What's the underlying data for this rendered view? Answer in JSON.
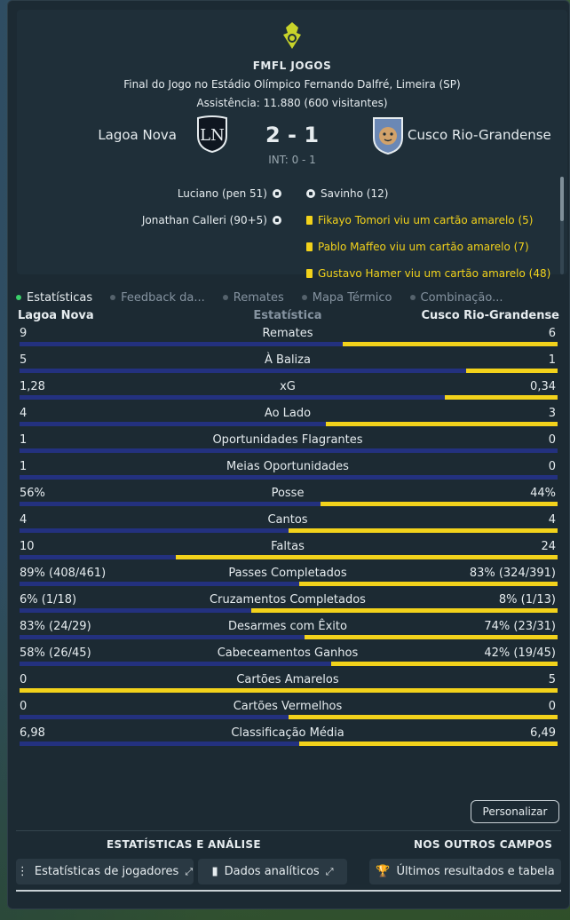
{
  "header": {
    "league_title": "FMFL JOGOS",
    "stadium": "Final do Jogo no Estádio Olímpico Fernando Dalfré, Limeira (SP)",
    "attendance": "Assistência: 11.880 (600 visitantes)",
    "home_team": "Lagoa Nova",
    "away_team": "Cusco Rio-Grandense",
    "score": "2 - 1",
    "halftime": "INT: 0 - 1"
  },
  "events": {
    "home": [
      {
        "text": "Luciano (pen 51)",
        "icon": "ball-icon"
      },
      {
        "text": "Jonathan Calleri (90+5)",
        "icon": "ball-icon"
      }
    ],
    "away": [
      {
        "text": "Savinho (12)",
        "icon": "ball-icon"
      },
      {
        "text": "Fikayo Tomori viu um cartão amarelo (5)",
        "icon": "yellow-card-icon"
      },
      {
        "text": "Pablo Maffeo viu um cartão amarelo (7)",
        "icon": "yellow-card-icon"
      },
      {
        "text": "Gustavo Hamer viu um cartão amarelo (48)",
        "icon": "yellow-card-icon"
      }
    ]
  },
  "tabs": [
    "Estatísticas",
    "Feedback da...",
    "Remates",
    "Mapa Térmico",
    "Combinação..."
  ],
  "stats_header": {
    "home": "Lagoa Nova",
    "center": "Estatística",
    "away": "Cusco Rio-Grandense"
  },
  "stats": [
    {
      "label": "Remates",
      "home": "9",
      "away": "6",
      "home_share": 0.6
    },
    {
      "label": "À Baliza",
      "home": "5",
      "away": "1",
      "home_share": 0.83
    },
    {
      "label": "xG",
      "home": "1,28",
      "away": "0,34",
      "home_share": 0.79
    },
    {
      "label": "Ao Lado",
      "home": "4",
      "away": "3",
      "home_share": 0.57
    },
    {
      "label": "Oportunidades Flagrantes",
      "home": "1",
      "away": "0",
      "home_share": 1.0
    },
    {
      "label": "Meias Oportunidades",
      "home": "1",
      "away": "0",
      "home_share": 1.0
    },
    {
      "label": "Posse",
      "home": "56%",
      "away": "44%",
      "home_share": 0.56
    },
    {
      "label": "Cantos",
      "home": "4",
      "away": "4",
      "home_share": 0.5
    },
    {
      "label": "Faltas",
      "home": "10",
      "away": "24",
      "home_share": 0.29
    },
    {
      "label": "Passes Completados",
      "home": "89% (408/461)",
      "away": "83% (324/391)",
      "home_share": 0.52
    },
    {
      "label": "Cruzamentos Completados",
      "home": "6% (1/18)",
      "away": "8% (1/13)",
      "home_share": 0.43
    },
    {
      "label": "Desarmes com Êxito",
      "home": "83% (24/29)",
      "away": "74% (23/31)",
      "home_share": 0.53
    },
    {
      "label": "Cabeceamentos Ganhos",
      "home": "58% (26/45)",
      "away": "42% (19/45)",
      "home_share": 0.58
    },
    {
      "label": "Cartões Amarelos",
      "home": "0",
      "away": "5",
      "home_share": 0.0
    },
    {
      "label": "Cartões Vermelhos",
      "home": "0",
      "away": "0",
      "home_share": 0.5
    },
    {
      "label": "Classificação Média",
      "home": "6,98",
      "away": "6,49",
      "home_share": 0.52
    }
  ],
  "footer": {
    "customize_label": "Personalizar",
    "section_left": "ESTATÍSTICAS E ANÁLISE",
    "section_right": "NOS OUTROS CAMPOS",
    "btn_players": "Estatísticas de jogadores",
    "btn_analytics": "Dados analíticos",
    "btn_results": "Últimos resultados e tabela"
  },
  "colors": {
    "home": "#23317f",
    "away": "#f2d21b",
    "panel": "#1c2a33"
  }
}
